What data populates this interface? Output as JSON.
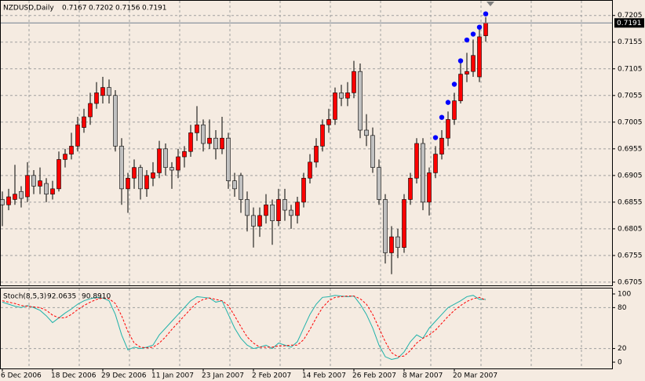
{
  "chart_data": [
    {
      "type": "candlestick",
      "title": "NZDUSD,Daily",
      "categories": [
        "6 Dec 2006",
        null,
        null,
        null,
        null,
        null,
        null,
        null,
        "18 Dec 2006",
        null,
        null,
        null,
        null,
        null,
        null,
        null,
        "29 Dec 2006",
        null,
        null,
        null,
        null,
        null,
        null,
        null,
        "11 Jan 2007",
        null,
        null,
        null,
        null,
        null,
        null,
        null,
        "23 Jan 2007",
        null,
        null,
        null,
        null,
        null,
        null,
        null,
        "2 Feb 2007",
        null,
        null,
        null,
        null,
        null,
        null,
        null,
        "14 Feb 2007",
        null,
        null,
        null,
        null,
        null,
        null,
        null,
        "26 Feb 2007",
        null,
        null,
        null,
        null,
        null,
        null,
        null,
        "8 Mar 2007",
        null,
        null,
        null,
        null,
        null,
        null,
        null,
        "20 Mar 2007",
        null,
        null,
        null,
        null,
        null
      ],
      "ohlc": [
        [
          0.686,
          0.6875,
          0.681,
          0.685
        ],
        [
          0.685,
          0.688,
          0.684,
          0.6865
        ],
        [
          0.686,
          0.6925,
          0.685,
          0.687
        ],
        [
          0.6875,
          0.6885,
          0.6845,
          0.6862
        ],
        [
          0.6865,
          0.693,
          0.6855,
          0.6905
        ],
        [
          0.6905,
          0.6915,
          0.687,
          0.6885
        ],
        [
          0.6885,
          0.692,
          0.687,
          0.6895
        ],
        [
          0.689,
          0.69,
          0.6855,
          0.687
        ],
        [
          0.687,
          0.6895,
          0.686,
          0.688
        ],
        [
          0.688,
          0.695,
          0.6875,
          0.6935
        ],
        [
          0.6935,
          0.6955,
          0.692,
          0.6945
        ],
        [
          0.6945,
          0.6985,
          0.6935,
          0.696
        ],
        [
          0.696,
          0.7015,
          0.695,
          0.7
        ],
        [
          0.6995,
          0.703,
          0.6985,
          0.7015
        ],
        [
          0.7015,
          0.706,
          0.7,
          0.704
        ],
        [
          0.704,
          0.708,
          0.703,
          0.706
        ],
        [
          0.7055,
          0.709,
          0.704,
          0.707
        ],
        [
          0.707,
          0.7085,
          0.704,
          0.7055
        ],
        [
          0.7055,
          0.7065,
          0.695,
          0.696
        ],
        [
          0.696,
          0.6975,
          0.685,
          0.688
        ],
        [
          0.688,
          0.691,
          0.6835,
          0.69
        ],
        [
          0.69,
          0.6935,
          0.688,
          0.692
        ],
        [
          0.692,
          0.6925,
          0.686,
          0.688
        ],
        [
          0.688,
          0.6915,
          0.6865,
          0.6905
        ],
        [
          0.69,
          0.693,
          0.6885,
          0.691
        ],
        [
          0.691,
          0.697,
          0.69,
          0.6955
        ],
        [
          0.6955,
          0.6965,
          0.6905,
          0.692
        ],
        [
          0.692,
          0.693,
          0.688,
          0.6915
        ],
        [
          0.6915,
          0.6955,
          0.69,
          0.694
        ],
        [
          0.694,
          0.696,
          0.692,
          0.695
        ],
        [
          0.695,
          0.7,
          0.694,
          0.6985
        ],
        [
          0.6985,
          0.7035,
          0.697,
          0.7
        ],
        [
          0.7,
          0.701,
          0.695,
          0.6965
        ],
        [
          0.6965,
          0.701,
          0.6955,
          0.6975
        ],
        [
          0.6975,
          0.699,
          0.6935,
          0.6955
        ],
        [
          0.6955,
          0.7015,
          0.6945,
          0.6975
        ],
        [
          0.6975,
          0.6985,
          0.688,
          0.6895
        ],
        [
          0.6895,
          0.691,
          0.6865,
          0.688
        ],
        [
          0.6905,
          0.691,
          0.6835,
          0.686
        ],
        [
          0.686,
          0.6875,
          0.68,
          0.683
        ],
        [
          0.683,
          0.6845,
          0.677,
          0.681
        ],
        [
          0.681,
          0.6845,
          0.679,
          0.683
        ],
        [
          0.683,
          0.687,
          0.6815,
          0.685
        ],
        [
          0.685,
          0.686,
          0.6775,
          0.682
        ],
        [
          0.682,
          0.688,
          0.681,
          0.686
        ],
        [
          0.686,
          0.688,
          0.682,
          0.684
        ],
        [
          0.684,
          0.685,
          0.6805,
          0.683
        ],
        [
          0.683,
          0.6865,
          0.6815,
          0.6855
        ],
        [
          0.6855,
          0.691,
          0.6845,
          0.69
        ],
        [
          0.69,
          0.6945,
          0.689,
          0.693
        ],
        [
          0.693,
          0.6975,
          0.692,
          0.696
        ],
        [
          0.696,
          0.701,
          0.695,
          0.7
        ],
        [
          0.7,
          0.703,
          0.6985,
          0.701
        ],
        [
          0.701,
          0.707,
          0.7,
          0.706
        ],
        [
          0.706,
          0.7075,
          0.7035,
          0.705
        ],
        [
          0.705,
          0.708,
          0.7035,
          0.706
        ],
        [
          0.706,
          0.712,
          0.705,
          0.71
        ],
        [
          0.71,
          0.7115,
          0.6975,
          0.699
        ],
        [
          0.699,
          0.702,
          0.696,
          0.698
        ],
        [
          0.698,
          0.6995,
          0.691,
          0.692
        ],
        [
          0.692,
          0.6935,
          0.685,
          0.686
        ],
        [
          0.686,
          0.687,
          0.674,
          0.676
        ],
        [
          0.676,
          0.681,
          0.672,
          0.679
        ],
        [
          0.679,
          0.6805,
          0.675,
          0.677
        ],
        [
          0.677,
          0.687,
          0.676,
          0.686
        ],
        [
          0.686,
          0.691,
          0.685,
          0.69
        ],
        [
          0.69,
          0.6975,
          0.689,
          0.6965
        ],
        [
          0.6965,
          0.6975,
          0.684,
          0.6855
        ],
        [
          0.6855,
          0.692,
          0.683,
          0.691
        ],
        [
          0.691,
          0.696,
          0.69,
          0.6945
        ],
        [
          0.6945,
          0.699,
          0.6935,
          0.6975
        ],
        [
          0.6975,
          0.7025,
          0.696,
          0.701
        ],
        [
          0.701,
          0.706,
          0.7,
          0.7045
        ],
        [
          0.7045,
          0.712,
          0.704,
          0.7095
        ],
        [
          0.7095,
          0.7135,
          0.708,
          0.71
        ],
        [
          0.71,
          0.716,
          0.709,
          0.713
        ],
        [
          0.709,
          0.718,
          0.708,
          0.7165
        ],
        [
          0.7167,
          0.7202,
          0.7156,
          0.7191
        ]
      ],
      "up_color": "#ff0000",
      "down_color": "#c0c0c0",
      "dots": {
        "color": "#0000ff",
        "values": [
          null,
          null,
          null,
          null,
          null,
          null,
          null,
          null,
          null,
          null,
          null,
          null,
          null,
          null,
          null,
          null,
          null,
          null,
          null,
          null,
          null,
          null,
          null,
          null,
          null,
          null,
          null,
          null,
          null,
          null,
          null,
          null,
          null,
          null,
          null,
          null,
          null,
          null,
          null,
          null,
          null,
          null,
          null,
          null,
          null,
          null,
          null,
          null,
          null,
          null,
          null,
          null,
          null,
          null,
          null,
          null,
          null,
          null,
          null,
          null,
          null,
          null,
          null,
          null,
          null,
          null,
          null,
          null,
          null,
          0.6976,
          0.7014,
          0.7042,
          0.7076,
          0.712,
          0.7159,
          0.717,
          0.7183,
          0.7208
        ]
      },
      "ylim": [
        0.6699,
        0.7234
      ],
      "yticks": [
        0.7205,
        0.7155,
        0.7105,
        0.7055,
        0.7005,
        0.6955,
        0.6905,
        0.6855,
        0.6805,
        0.6755,
        0.6705
      ],
      "grid": true
    },
    {
      "type": "line",
      "title": "Stoch(8,5,3)",
      "series": [
        {
          "color": "#20b2aa",
          "values": [
            88,
            85,
            82,
            80,
            83,
            80,
            76,
            68,
            58,
            65,
            72,
            78,
            85,
            90,
            93,
            95,
            94,
            90,
            70,
            40,
            18,
            22,
            20,
            22,
            25,
            40,
            50,
            60,
            70,
            80,
            90,
            96,
            95,
            94,
            88,
            90,
            70,
            50,
            35,
            25,
            20,
            22,
            25,
            20,
            28,
            25,
            22,
            30,
            50,
            70,
            85,
            95,
            96,
            98,
            97,
            96,
            97,
            85,
            70,
            50,
            25,
            8,
            4,
            6,
            15,
            30,
            40,
            35,
            50,
            60,
            70,
            80,
            85,
            90,
            96,
            98,
            92,
            92.0635
          ]
        },
        {
          "color": "#ff0000",
          "dashed": true,
          "values": [
            90,
            88,
            86,
            83,
            82,
            81,
            80,
            76,
            69,
            65,
            65,
            70,
            77,
            83,
            88,
            92,
            94,
            93,
            86,
            68,
            45,
            28,
            22,
            21,
            22,
            28,
            37,
            48,
            58,
            68,
            78,
            87,
            92,
            94,
            92,
            90,
            83,
            68,
            52,
            37,
            28,
            22,
            22,
            22,
            24,
            24,
            25,
            25,
            33,
            48,
            65,
            80,
            90,
            95,
            96,
            97,
            97,
            93,
            85,
            70,
            50,
            30,
            14,
            8,
            9,
            17,
            28,
            35,
            40,
            47,
            57,
            67,
            76,
            83,
            89,
            93,
            95,
            90.891
          ],
          "value_labels": [
            null,
            null,
            null,
            null,
            null,
            null,
            null,
            null,
            null,
            null,
            null,
            null,
            null,
            null,
            null,
            null,
            null,
            null,
            null,
            null,
            null,
            null,
            null,
            null,
            null,
            null,
            null,
            null,
            null,
            null,
            null,
            null,
            null,
            null,
            null,
            null,
            null,
            null,
            null,
            null,
            null,
            null,
            null,
            null,
            null,
            null,
            null,
            null,
            null,
            null,
            null,
            null,
            null,
            null,
            null,
            null,
            null,
            null,
            null,
            null,
            null,
            null,
            null,
            null,
            null,
            null,
            null,
            null,
            null,
            null,
            null,
            null,
            null,
            null,
            null,
            null,
            null,
            "90.8910"
          ]
        }
      ],
      "ylim": [
        -9.2,
        108
      ],
      "yticks": [
        0,
        20,
        80,
        100
      ]
    }
  ]
}
